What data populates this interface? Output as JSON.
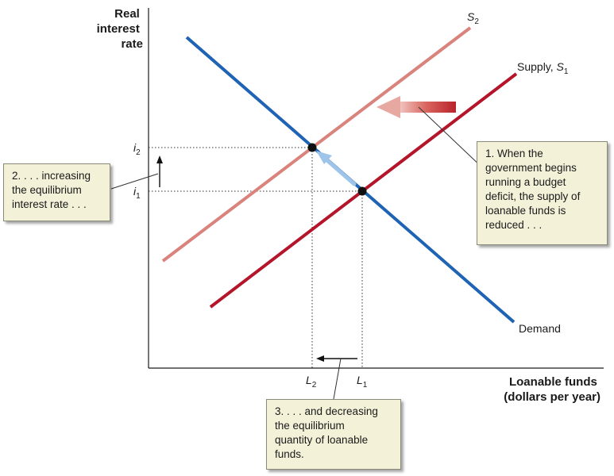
{
  "axes": {
    "y_title_lines": [
      "Real",
      "interest",
      "rate"
    ],
    "x_title_lines": [
      "Loanable funds",
      "(dollars per year)"
    ]
  },
  "curves": {
    "s2": {
      "label": "S",
      "sub": "2",
      "color": "#d9837c"
    },
    "s1": {
      "label_prefix": "Supply, ",
      "label": "S",
      "sub": "1",
      "color": "#b5152b"
    },
    "demand": {
      "label": "Demand",
      "color": "#1f63b5"
    }
  },
  "ticks": {
    "i2": {
      "label": "i",
      "sub": "2"
    },
    "i1": {
      "label": "i",
      "sub": "1"
    },
    "l2": {
      "label": "L",
      "sub": "2"
    },
    "l1": {
      "label": "L",
      "sub": "1"
    }
  },
  "callouts": {
    "deficit": [
      "1. When the",
      "government begins",
      "running a budget",
      "deficit, the supply of",
      "loanable funds is",
      "reduced . . ."
    ],
    "interest": [
      "2. . . . increasing",
      "the equilibrium",
      "interest rate . . ."
    ],
    "quantity": [
      "3. . . . and decreasing",
      "the equilibrium",
      "quantity of loanable",
      "funds."
    ]
  },
  "colors": {
    "shift_arrow": "#c9423f",
    "movement_arrow": "#9fc4ea",
    "box_bg": "#f4f1d9"
  }
}
